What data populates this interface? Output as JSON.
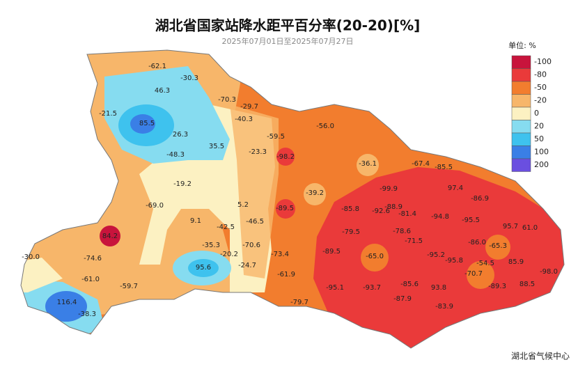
{
  "header": {
    "title": "湖北省国家站降水距平百分率(20-20)[%]",
    "subtitle": "2025年07月01日至2025年07月27日"
  },
  "legend": {
    "unit": "单位: %",
    "items": [
      {
        "label": "-100",
        "color": "#c8143c"
      },
      {
        "label": "-80",
        "color": "#ea3a3a"
      },
      {
        "label": "-50",
        "color": "#f27d2e"
      },
      {
        "label": "-20",
        "color": "#f7b66a"
      },
      {
        "label": "0",
        "color": "#fcf1c2"
      },
      {
        "label": "20",
        "color": "#86dcf0"
      },
      {
        "label": "50",
        "color": "#3ec2ee"
      },
      {
        "label": "100",
        "color": "#3a7fe6"
      },
      {
        "label": "200",
        "color": "#6a4fe0"
      }
    ]
  },
  "stations": [
    "-62.1",
    "-30.3",
    "46.3",
    "-70.3",
    "-29.7",
    "-21.5",
    "85.5",
    "-40.3",
    "-56.0",
    "26.3",
    "35.5",
    "-59.5",
    "-23.3",
    "-48.3",
    "-98.2",
    "-36.1",
    "-67.4",
    "-85.5",
    "-19.2",
    "-39.2",
    "-99.9",
    "97.4",
    "-69.0",
    "5.2",
    "-89.5",
    "-85.8",
    "-88.9",
    "-92.6",
    "-86.9",
    "-81.4",
    "-94.8",
    "-95.5",
    "9.1",
    "-42.5",
    "-46.5",
    "84.2",
    "-79.5",
    "-78.6",
    "-71.5",
    "95.7",
    "61.0",
    "-35.3",
    "-70.6",
    "-86.0",
    "-65.3",
    "-30.0",
    "-74.6",
    "-20.2",
    "-89.5",
    "-65.0",
    "-95.2",
    "-95.8",
    "-54.5",
    "-73.4",
    "95.6",
    "-24.7",
    "-70.7",
    "85.9",
    "-98.0",
    "-61.0",
    "-61.9",
    "-89.3",
    "88.5",
    "-59.7",
    "-95.1",
    "-93.7",
    "-85.6",
    "93.8",
    "116.4",
    "-38.3",
    "-79.7",
    "-87.9",
    "-83.9"
  ],
  "footer": {
    "source": "湖北省气候中心"
  }
}
